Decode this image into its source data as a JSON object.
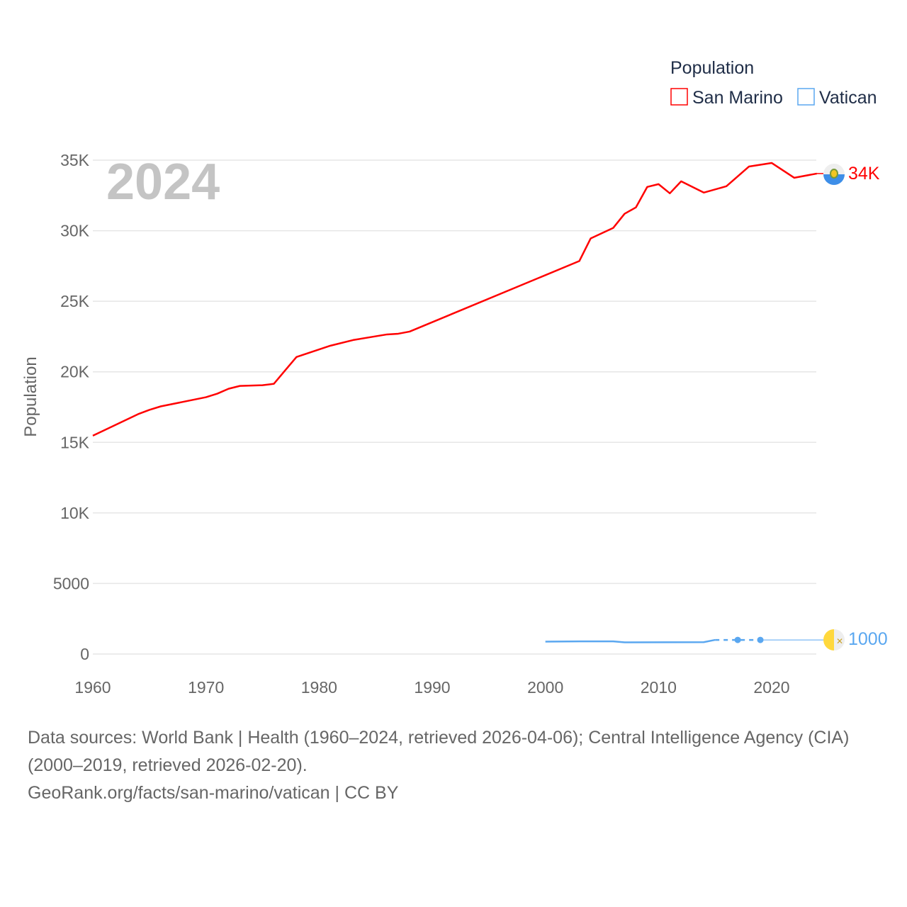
{
  "chart_data": {
    "type": "line",
    "title": "2024",
    "ylabel": "Population",
    "xlabel": "",
    "xlim": [
      1960,
      2024
    ],
    "ylim": [
      0,
      35000
    ],
    "x_ticks": [
      "1960",
      "1970",
      "1980",
      "1990",
      "2000",
      "2010",
      "2020"
    ],
    "y_ticks": [
      "0",
      "5000",
      "10K",
      "15K",
      "20K",
      "25K",
      "30K",
      "35K"
    ],
    "legend": {
      "title": "Population",
      "placement": "top-right"
    },
    "series": [
      {
        "name": "San Marino",
        "color": "#ff0000",
        "end_label": "34K",
        "icon": "san-marino-flag-icon",
        "points": [
          [
            1960,
            15470
          ],
          [
            1964,
            17000
          ],
          [
            1965,
            17300
          ],
          [
            1966,
            17550
          ],
          [
            1970,
            18200
          ],
          [
            1971,
            18450
          ],
          [
            1972,
            18800
          ],
          [
            1973,
            19000
          ],
          [
            1975,
            19050
          ],
          [
            1976,
            19150
          ],
          [
            1977,
            20100
          ],
          [
            1978,
            21050
          ],
          [
            1981,
            21850
          ],
          [
            1983,
            22250
          ],
          [
            1986,
            22650
          ],
          [
            1987,
            22700
          ],
          [
            1988,
            22850
          ],
          [
            2003,
            27850
          ],
          [
            2004,
            29450
          ],
          [
            2006,
            30200
          ],
          [
            2007,
            31200
          ],
          [
            2008,
            31650
          ],
          [
            2009,
            33100
          ],
          [
            2010,
            33300
          ],
          [
            2011,
            32650
          ],
          [
            2012,
            33500
          ],
          [
            2014,
            32700
          ],
          [
            2016,
            33150
          ],
          [
            2018,
            34550
          ],
          [
            2020,
            34800
          ],
          [
            2022,
            33750
          ],
          [
            2024,
            34050
          ]
        ]
      },
      {
        "name": "Vatican",
        "color": "#5aa7f0",
        "end_label": "1000",
        "icon": "vatican-flag-icon",
        "points": [
          [
            2000,
            880
          ],
          [
            2003,
            895
          ],
          [
            2006,
            900
          ],
          [
            2007,
            830
          ],
          [
            2014,
            840
          ],
          [
            2015,
            1000
          ]
        ],
        "dashed_points": [
          [
            2015,
            1000
          ],
          [
            2017,
            1000
          ],
          [
            2019,
            1000
          ]
        ]
      }
    ]
  },
  "footer": {
    "line1": "Data sources: World Bank | Health (1960–2024, retrieved 2026-04-06); Central Intelligence Agency (CIA)",
    "line2": "(2000–2019, retrieved 2026-02-20).",
    "line3": "GeoRank.org/facts/san-marino/vatican | CC BY"
  }
}
